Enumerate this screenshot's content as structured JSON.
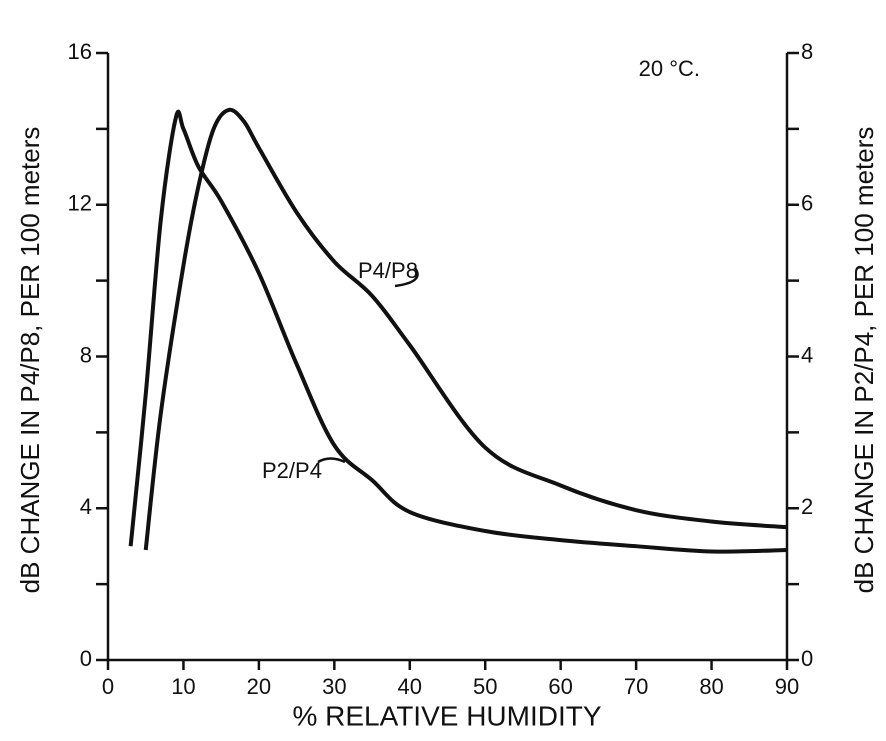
{
  "chart_data": {
    "type": "line",
    "xlabel": "% RELATIVE HUMIDITY",
    "ylabel": "dB CHANGE IN P4/P8, PER 100 meters",
    "y2label": "dB CHANGE IN P2/P4, PER 100 meters",
    "annotations": [
      "20 °C."
    ],
    "xlim": [
      0,
      90
    ],
    "xticks": [
      0,
      10,
      20,
      30,
      40,
      50,
      60,
      70,
      80,
      90
    ],
    "ylim": [
      0,
      16
    ],
    "yticks": [
      0,
      4,
      8,
      12,
      16
    ],
    "yminorticks": [
      2,
      6,
      10,
      14
    ],
    "y2lim": [
      0,
      8
    ],
    "y2ticks": [
      0,
      2,
      4,
      6,
      8
    ],
    "y2minorticks": [
      1,
      3,
      5,
      7
    ],
    "grid": false,
    "series": [
      {
        "name": "P4/P8",
        "color": "#111111",
        "axis": "y",
        "x": [
          5,
          7,
          10,
          12,
          14,
          16,
          18,
          20,
          25,
          30,
          35,
          40,
          50,
          60,
          70,
          80,
          90
        ],
        "values": [
          2.9,
          6.5,
          10.4,
          12.5,
          14.0,
          14.5,
          14.2,
          13.5,
          11.8,
          10.5,
          9.6,
          8.3,
          5.6,
          4.6,
          3.95,
          3.65,
          3.5
        ]
      },
      {
        "name": "P2/P4",
        "color": "#111111",
        "axis": "y2",
        "x": [
          3,
          5,
          7,
          9,
          10,
          12,
          15,
          20,
          25,
          30,
          35,
          40,
          50,
          60,
          70,
          80,
          90
        ],
        "values": [
          1.5,
          3.5,
          5.8,
          7.15,
          7.0,
          6.5,
          6.05,
          5.1,
          3.9,
          2.83,
          2.37,
          1.95,
          1.7,
          1.58,
          1.5,
          1.43,
          1.45
        ]
      }
    ]
  }
}
